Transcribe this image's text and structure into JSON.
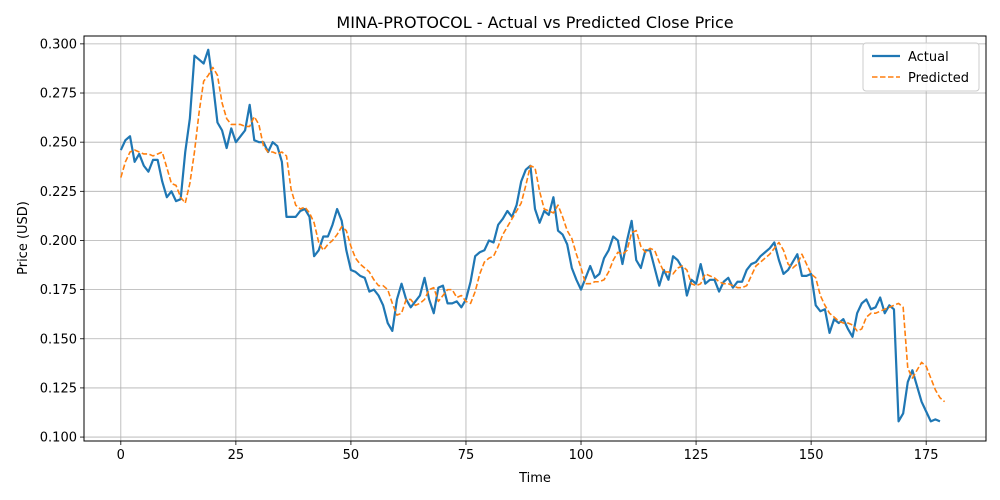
{
  "chart_data": {
    "type": "line",
    "title": "MINA-PROTOCOL - Actual vs Predicted Close Price",
    "xlabel": "Time",
    "ylabel": "Price (USD)",
    "xlim": [
      -8,
      188
    ],
    "ylim": [
      0.098,
      0.304
    ],
    "xticks": [
      0,
      25,
      50,
      75,
      100,
      125,
      150,
      175
    ],
    "yticks": [
      0.1,
      0.125,
      0.15,
      0.175,
      0.2,
      0.225,
      0.25,
      0.275,
      0.3
    ],
    "ytick_labels": [
      "0.100",
      "0.125",
      "0.150",
      "0.175",
      "0.200",
      "0.225",
      "0.250",
      "0.275",
      "0.300"
    ],
    "grid": true,
    "legend_position": "top-right",
    "series": [
      {
        "name": "Actual",
        "color": "#1f77b4",
        "style": "solid",
        "x_start": 0,
        "values": [
          0.246,
          0.251,
          0.253,
          0.24,
          0.244,
          0.238,
          0.235,
          0.241,
          0.241,
          0.23,
          0.222,
          0.225,
          0.22,
          0.221,
          0.245,
          0.262,
          0.294,
          0.292,
          0.29,
          0.297,
          0.28,
          0.26,
          0.256,
          0.247,
          0.257,
          0.25,
          0.253,
          0.256,
          0.269,
          0.251,
          0.25,
          0.25,
          0.245,
          0.25,
          0.248,
          0.24,
          0.212,
          0.212,
          0.212,
          0.215,
          0.216,
          0.212,
          0.192,
          0.195,
          0.202,
          0.202,
          0.208,
          0.216,
          0.21,
          0.195,
          0.185,
          0.184,
          0.182,
          0.181,
          0.174,
          0.175,
          0.172,
          0.167,
          0.158,
          0.154,
          0.17,
          0.178,
          0.17,
          0.166,
          0.169,
          0.172,
          0.181,
          0.17,
          0.163,
          0.176,
          0.177,
          0.168,
          0.168,
          0.169,
          0.166,
          0.17,
          0.179,
          0.192,
          0.194,
          0.195,
          0.2,
          0.199,
          0.208,
          0.211,
          0.215,
          0.212,
          0.218,
          0.23,
          0.236,
          0.238,
          0.216,
          0.209,
          0.215,
          0.213,
          0.222,
          0.205,
          0.203,
          0.198,
          0.186,
          0.18,
          0.175,
          0.181,
          0.187,
          0.181,
          0.183,
          0.191,
          0.195,
          0.202,
          0.2,
          0.188,
          0.2,
          0.21,
          0.19,
          0.186,
          0.195,
          0.195,
          0.186,
          0.177,
          0.185,
          0.18,
          0.192,
          0.19,
          0.186,
          0.172,
          0.18,
          0.178,
          0.188,
          0.178,
          0.18,
          0.18,
          0.174,
          0.179,
          0.181,
          0.176,
          0.179,
          0.179,
          0.185,
          0.188,
          0.189,
          0.192,
          0.194,
          0.196,
          0.199,
          0.19,
          0.183,
          0.185,
          0.189,
          0.193,
          0.182,
          0.182,
          0.183,
          0.167,
          0.164,
          0.165,
          0.153,
          0.16,
          0.158,
          0.16,
          0.155,
          0.151,
          0.163,
          0.168,
          0.17,
          0.165,
          0.166,
          0.171,
          0.163,
          0.167,
          0.165,
          0.108,
          0.112,
          0.128,
          0.134,
          0.126,
          0.118,
          0.113,
          0.108,
          0.109,
          0.108
        ]
      },
      {
        "name": "Predicted",
        "color": "#ff7f0e",
        "style": "dashed",
        "x_start": 0,
        "values": [
          0.232,
          0.24,
          0.245,
          0.246,
          0.245,
          0.244,
          0.244,
          0.243,
          0.244,
          0.245,
          0.237,
          0.229,
          0.228,
          0.222,
          0.219,
          0.229,
          0.245,
          0.265,
          0.281,
          0.284,
          0.288,
          0.284,
          0.27,
          0.262,
          0.259,
          0.259,
          0.259,
          0.258,
          0.258,
          0.263,
          0.259,
          0.248,
          0.245,
          0.245,
          0.244,
          0.245,
          0.243,
          0.226,
          0.218,
          0.216,
          0.217,
          0.214,
          0.209,
          0.199,
          0.195,
          0.198,
          0.2,
          0.203,
          0.207,
          0.205,
          0.197,
          0.191,
          0.188,
          0.186,
          0.184,
          0.18,
          0.177,
          0.177,
          0.175,
          0.168,
          0.162,
          0.163,
          0.17,
          0.17,
          0.167,
          0.168,
          0.17,
          0.175,
          0.176,
          0.169,
          0.172,
          0.175,
          0.175,
          0.171,
          0.172,
          0.169,
          0.168,
          0.174,
          0.183,
          0.189,
          0.191,
          0.192,
          0.197,
          0.203,
          0.207,
          0.211,
          0.215,
          0.219,
          0.228,
          0.238,
          0.237,
          0.225,
          0.216,
          0.215,
          0.214,
          0.218,
          0.212,
          0.205,
          0.201,
          0.193,
          0.186,
          0.178,
          0.178,
          0.179,
          0.179,
          0.18,
          0.184,
          0.19,
          0.194,
          0.193,
          0.195,
          0.204,
          0.205,
          0.197,
          0.194,
          0.196,
          0.195,
          0.189,
          0.184,
          0.184,
          0.183,
          0.186,
          0.187,
          0.185,
          0.178,
          0.177,
          0.178,
          0.183,
          0.182,
          0.181,
          0.179,
          0.178,
          0.178,
          0.177,
          0.176,
          0.176,
          0.177,
          0.182,
          0.187,
          0.189,
          0.191,
          0.193,
          0.196,
          0.199,
          0.195,
          0.188,
          0.186,
          0.188,
          0.193,
          0.188,
          0.183,
          0.181,
          0.172,
          0.167,
          0.163,
          0.161,
          0.159,
          0.158,
          0.158,
          0.157,
          0.154,
          0.155,
          0.161,
          0.163,
          0.163,
          0.164,
          0.165,
          0.166,
          0.167,
          0.168,
          0.166,
          0.135,
          0.13,
          0.134,
          0.138,
          0.136,
          0.13,
          0.124,
          0.12,
          0.118
        ]
      }
    ]
  }
}
